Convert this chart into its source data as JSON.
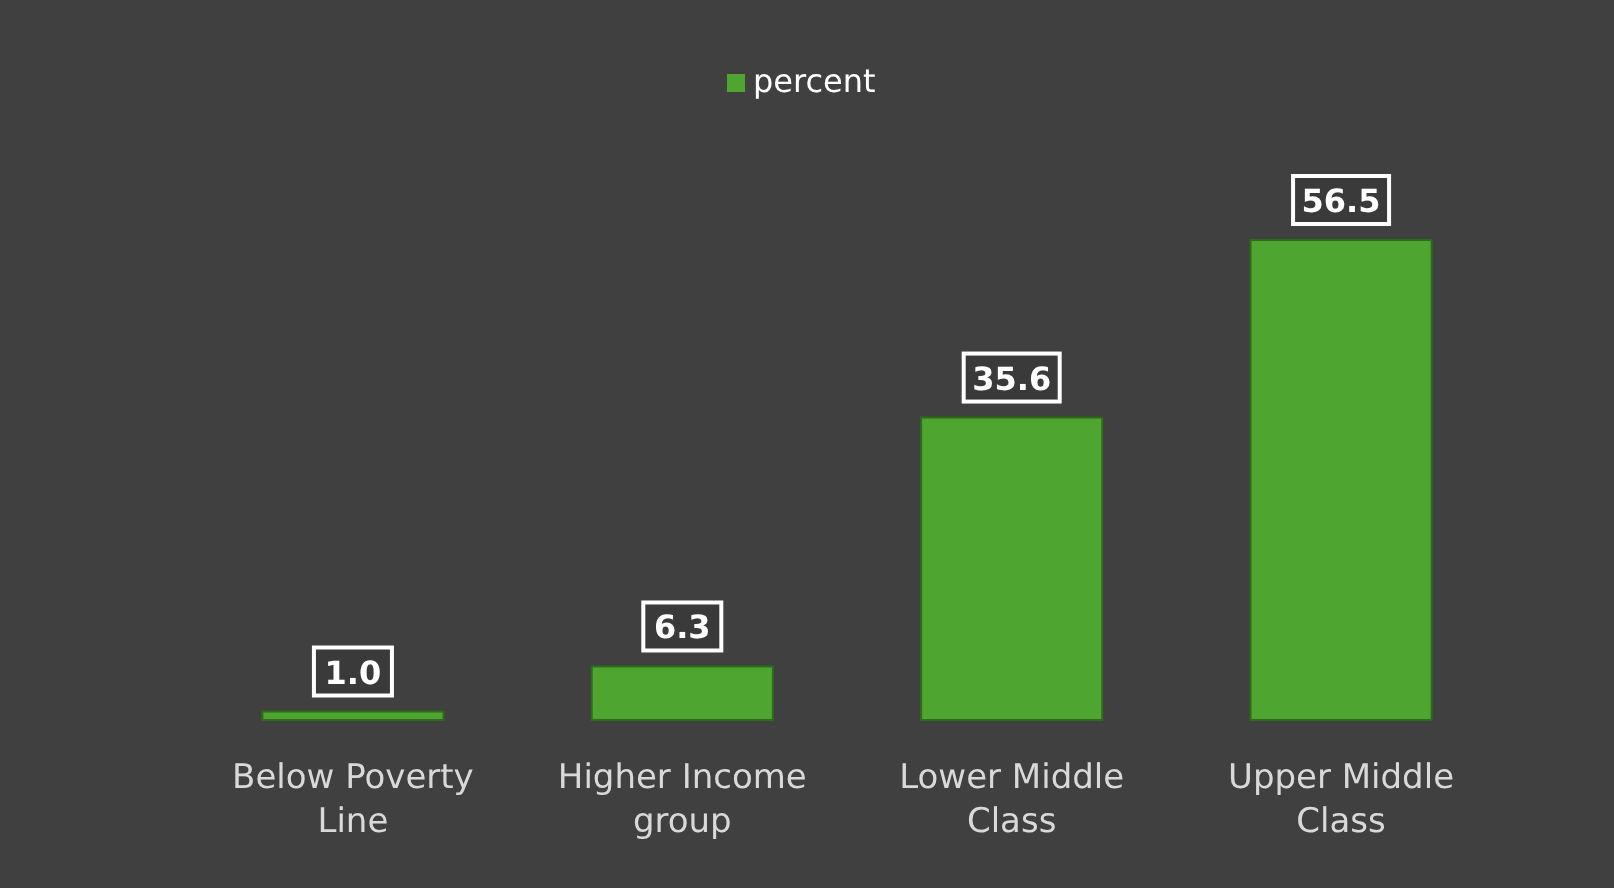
{
  "chart_data": {
    "type": "bar",
    "categories": [
      "Below Poverty Line",
      "Higher Income group",
      "Lower Middle Class",
      "Upper Middle Class"
    ],
    "series": [
      {
        "name": "percent",
        "color": "#4ea52f",
        "values": [
          1.0,
          6.3,
          35.6,
          56.5
        ],
        "value_labels": [
          "1.0",
          "6.3",
          "35.6",
          "56.5"
        ]
      }
    ],
    "legend": "top"
  }
}
